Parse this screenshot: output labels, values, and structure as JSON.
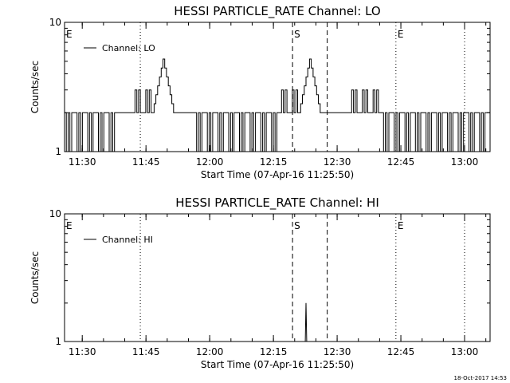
{
  "chart_data": [
    {
      "type": "line",
      "title": "HESSI PARTICLE_RATE Channel: LO",
      "xlabel": "Start Time (07-Apr-16 11:25:50)",
      "ylabel": "Counts/sec",
      "y_scale": "log",
      "ylim": [
        1,
        10
      ],
      "y_ticks": [
        {
          "value": 1,
          "label": "1"
        },
        {
          "value": 10,
          "label": "10"
        }
      ],
      "xlim_minutes": [
        "11:25:50",
        "13:06:00"
      ],
      "x_ticks": [
        "11:30",
        "11:45",
        "12:00",
        "12:15",
        "12:30",
        "12:45",
        "13:00"
      ],
      "legend": {
        "label": "Channel: LO",
        "placement": "top-left"
      },
      "markers": [
        {
          "label": "E",
          "time": "11:25:50",
          "style": "dotted"
        },
        {
          "label": "",
          "time": "11:43:40",
          "style": "dotted"
        },
        {
          "label": "S",
          "time": "12:19:30",
          "style": "dashed"
        },
        {
          "label": "",
          "time": "12:27:40",
          "style": "dashed"
        },
        {
          "label": "E",
          "time": "12:43:50",
          "style": "dotted"
        },
        {
          "label": "",
          "time": "13:00:00",
          "style": "dotted"
        }
      ],
      "series": [
        {
          "name": "Channel: LO",
          "segments": [
            {
              "start": "11:25:50",
              "end": "11:38:00",
              "pattern": "toggle",
              "values": [
                2,
                1
              ]
            },
            {
              "start": "11:38:00",
              "end": "11:42:00",
              "pattern": "flat",
              "values": [
                2
              ]
            },
            {
              "start": "11:42:00",
              "end": "11:46:30",
              "pattern": "toggle",
              "values": [
                2,
                3
              ]
            },
            {
              "start": "11:46:30",
              "end": "11:51:30",
              "pattern": "peak",
              "values": [
                2,
                5.2
              ]
            },
            {
              "start": "11:51:30",
              "end": "11:56:30",
              "pattern": "flat",
              "values": [
                2
              ]
            },
            {
              "start": "11:56:30",
              "end": "12:16:30",
              "pattern": "toggle",
              "values": [
                2,
                1
              ]
            },
            {
              "start": "12:16:30",
              "end": "12:21:00",
              "pattern": "toggle",
              "values": [
                2,
                3
              ]
            },
            {
              "start": "12:21:00",
              "end": "12:26:00",
              "pattern": "peak",
              "values": [
                2,
                5.2
              ]
            },
            {
              "start": "12:26:00",
              "end": "12:33:00",
              "pattern": "flat",
              "values": [
                2
              ]
            },
            {
              "start": "12:33:00",
              "end": "12:40:30",
              "pattern": "toggle",
              "values": [
                2,
                3
              ]
            },
            {
              "start": "12:40:30",
              "end": "12:48:00",
              "pattern": "toggle",
              "values": [
                2,
                1
              ]
            },
            {
              "start": "12:48:00",
              "end": "13:06:00",
              "pattern": "toggle",
              "values": [
                2,
                1
              ]
            }
          ]
        }
      ]
    },
    {
      "type": "line",
      "title": "HESSI PARTICLE_RATE Channel: HI",
      "xlabel": "Start Time (07-Apr-16 11:25:50)",
      "ylabel": "Counts/sec",
      "y_scale": "log",
      "ylim": [
        1,
        10
      ],
      "y_ticks": [
        {
          "value": 1,
          "label": "1"
        },
        {
          "value": 10,
          "label": "10"
        }
      ],
      "xlim_minutes": [
        "11:25:50",
        "13:06:00"
      ],
      "x_ticks": [
        "11:30",
        "11:45",
        "12:00",
        "12:15",
        "12:30",
        "12:45",
        "13:00"
      ],
      "legend": {
        "label": "Channel: HI",
        "placement": "top-left"
      },
      "markers": [
        {
          "label": "E",
          "time": "11:25:50",
          "style": "dotted"
        },
        {
          "label": "",
          "time": "11:43:40",
          "style": "dotted"
        },
        {
          "label": "S",
          "time": "12:19:30",
          "style": "dashed"
        },
        {
          "label": "",
          "time": "12:27:40",
          "style": "dashed"
        },
        {
          "label": "E",
          "time": "12:43:50",
          "style": "dotted"
        },
        {
          "label": "",
          "time": "13:00:00",
          "style": "dotted"
        }
      ],
      "series": [
        {
          "name": "Channel: HI",
          "points": [
            {
              "time": "12:22:30",
              "value": 1
            },
            {
              "time": "12:22:40",
              "value": 2
            },
            {
              "time": "12:22:50",
              "value": 1
            }
          ]
        }
      ]
    }
  ],
  "footer": "18-Oct-2017 14:53"
}
